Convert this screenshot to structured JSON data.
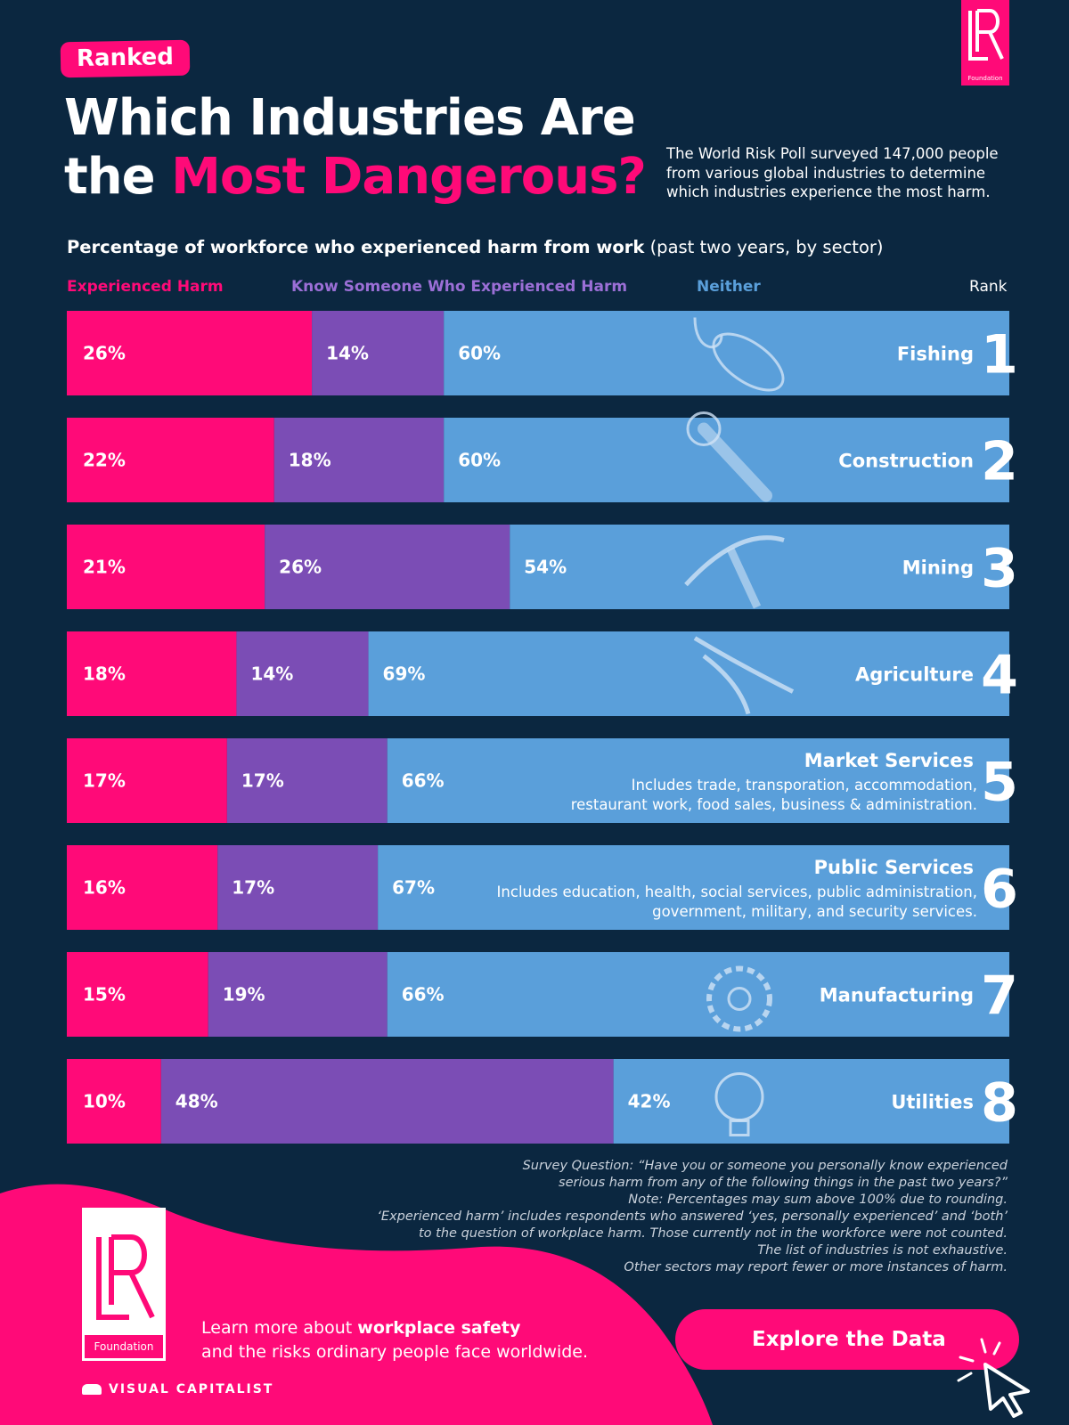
{
  "header": {
    "tag": "Ranked",
    "title_line1": "Which Industries Are",
    "title_line2_plain": "the ",
    "title_line2_accent": "Most Dangerous?",
    "intro": "The World Risk Poll surveyed 147,000 people from various global industries to determine which industries experience the most harm.",
    "logo_text": "Foundation"
  },
  "subtitle": {
    "bold": "Percentage of workforce who experienced harm from work",
    "light": "(past two years, by sector)"
  },
  "legend": {
    "harm": "Experienced Harm",
    "know": "Know Someone Who Experienced Harm",
    "neither": "Neither",
    "rank": "Rank"
  },
  "colors": {
    "background": "#0b2740",
    "harm": "#ff0a78",
    "know": "#7b4db5",
    "neither": "#5a9fda",
    "legend_neither": "#5a9fda",
    "legend_know": "#9b6fd6"
  },
  "chart_data": {
    "type": "bar",
    "orientation": "horizontal",
    "stacked": true,
    "categories": [
      "Fishing",
      "Construction",
      "Mining",
      "Agriculture",
      "Market Services",
      "Public Services",
      "Manufacturing",
      "Utilities"
    ],
    "ranks": [
      "1",
      "2",
      "3",
      "4",
      "5",
      "6",
      "7",
      "8"
    ],
    "descriptions": [
      [],
      [],
      [],
      [],
      [
        "Includes trade, transporation, accommodation,",
        "restaurant work, food sales, business & administration."
      ],
      [
        "Includes education, health, social services, public administration,",
        "government, military, and security services."
      ],
      [],
      []
    ],
    "series": [
      {
        "name": "Experienced Harm",
        "values": [
          26,
          22,
          21,
          18,
          17,
          16,
          15,
          10
        ],
        "labels": [
          "26%",
          "22%",
          "21%",
          "18%",
          "17%",
          "16%",
          "15%",
          "10%"
        ]
      },
      {
        "name": "Know Someone Who Experienced Harm",
        "values": [
          14,
          18,
          26,
          14,
          17,
          17,
          19,
          48
        ],
        "labels": [
          "14%",
          "18%",
          "26%",
          "14%",
          "17%",
          "17%",
          "19%",
          "48%"
        ]
      },
      {
        "name": "Neither",
        "values": [
          60,
          60,
          54,
          69,
          66,
          67,
          66,
          42
        ],
        "labels": [
          "60%",
          "60%",
          "54%",
          "69%",
          "66%",
          "67%",
          "66%",
          "42%"
        ]
      }
    ],
    "xlim": [
      0,
      100
    ]
  },
  "icons": [
    "fish-hook-icon",
    "wrench-icon",
    "pickaxe-icon",
    "pliers-icon",
    "",
    "",
    "gear-icon",
    "light-bulb-icon"
  ],
  "notes": [
    "Survey Question: “Have you or someone you personally know experienced",
    "serious harm from any of the following things in the past two years?”",
    "Note: Percentages may sum above 100% due to rounding.",
    "‘Experienced harm’ includes respondents who answered ‘yes, personally experienced’ and ‘both’",
    "to the question of workplace harm. Those currently not in the workforce were not counted.",
    "The list of industries is not exhaustive.",
    "Other sectors may report fewer or more instances of harm."
  ],
  "footer": {
    "logo_text": "Foundation",
    "learn_prefix": "Learn more about ",
    "learn_bold": "workplace safety",
    "learn_line2": "and the risks ordinary people face worldwide.",
    "brand": "VISUAL CAPITALIST",
    "cta": "Explore the Data"
  }
}
